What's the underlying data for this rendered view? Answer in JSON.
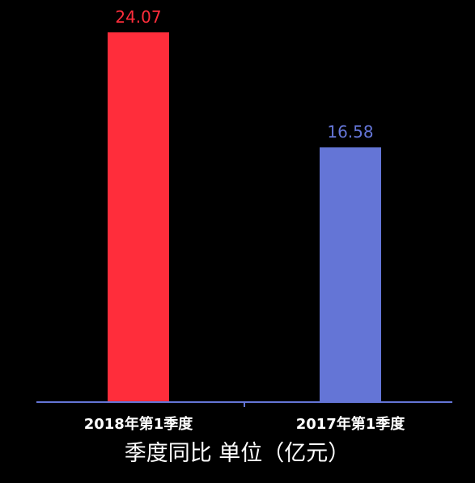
{
  "chart_data": {
    "type": "bar",
    "categories": [
      "2018年第1季度",
      "2017年第1季度"
    ],
    "values": [
      24.07,
      16.58
    ],
    "data_labels": [
      "24.07",
      "16.58"
    ],
    "colors": [
      "#ff2d3b",
      "#6475d6"
    ],
    "title": "季度同比 单位（亿元）",
    "xlabel": "",
    "ylabel": "",
    "ylim": [
      0,
      24.07
    ],
    "grid": false,
    "axis_color": "#6475d6",
    "background": "#000000",
    "tick_label_color": "#ffffff",
    "title_color": "#ffffff"
  }
}
